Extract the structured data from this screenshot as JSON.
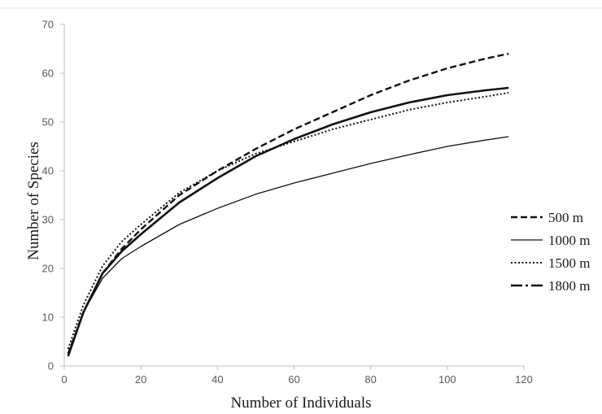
{
  "chart_data": {
    "type": "line",
    "title": "",
    "xlabel": "Number of Individuals",
    "ylabel": "Number of Species",
    "xlim": [
      0,
      120
    ],
    "ylim": [
      0,
      70
    ],
    "x_ticks": [
      0,
      20,
      40,
      60,
      80,
      100,
      120
    ],
    "y_ticks": [
      0,
      10,
      20,
      30,
      40,
      50,
      60,
      70
    ],
    "grid": false,
    "legend_position": "right",
    "x": [
      1,
      5,
      10,
      15,
      20,
      30,
      40,
      50,
      60,
      70,
      80,
      90,
      100,
      110,
      116
    ],
    "series": [
      {
        "name": "500 m",
        "style": "dashed",
        "values": [
          2.5,
          11,
          19,
          24,
          28,
          35,
          40,
          44.5,
          48.5,
          52,
          55.5,
          58.5,
          61,
          63,
          64
        ]
      },
      {
        "name": "1000 m",
        "style": "solid-thin",
        "values": [
          2.5,
          11,
          18,
          22,
          24.5,
          29,
          32.3,
          35.2,
          37.5,
          39.5,
          41.5,
          43.3,
          45,
          46.3,
          47
        ]
      },
      {
        "name": "1500 m",
        "style": "dotted",
        "values": [
          3.5,
          12.5,
          20.5,
          25.5,
          29,
          35.5,
          40,
          43.5,
          46,
          48.5,
          50.5,
          52.5,
          54,
          55.2,
          56
        ]
      },
      {
        "name": "1800 m",
        "style": "dash-dot",
        "values": [
          2,
          11,
          19,
          23.5,
          27,
          33.5,
          38.5,
          43,
          46.5,
          49.5,
          52,
          54,
          55.5,
          56.5,
          57
        ]
      }
    ]
  }
}
